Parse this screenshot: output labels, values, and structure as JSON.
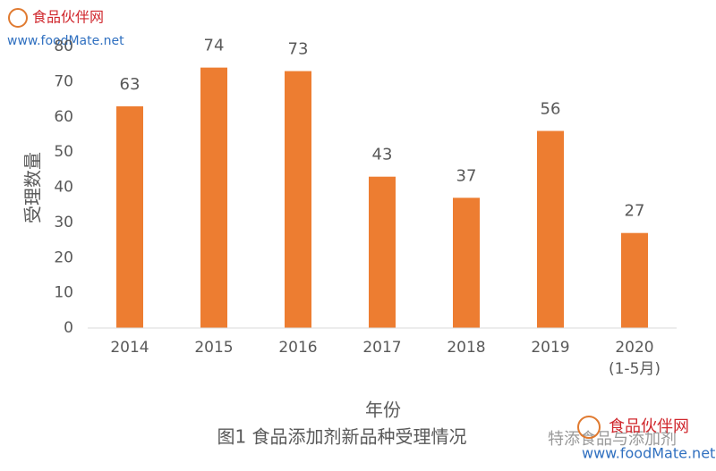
{
  "chart_data": {
    "type": "bar",
    "categories": [
      "2014",
      "2015",
      "2016",
      "2017",
      "2018",
      "2019",
      "2020\n(1-5月)"
    ],
    "values": [
      63,
      74,
      73,
      43,
      37,
      56,
      27
    ],
    "color": "#ED7D31",
    "ylim": [
      0,
      80
    ],
    "yticks": [
      0,
      10,
      20,
      30,
      40,
      50,
      60,
      70,
      80
    ],
    "ylabel": "受理数量",
    "xlabel": "年份",
    "caption": "图1 食品添加剂新品种受理情况",
    "grid": false
  },
  "watermarks": {
    "site_name": "食品伙伴网",
    "site_url": "www.foodMate.net",
    "wechat": "特添食品与添加剂",
    "site_name_2": "食品伙伴网",
    "site_url_2": "www.foodMate.net"
  }
}
